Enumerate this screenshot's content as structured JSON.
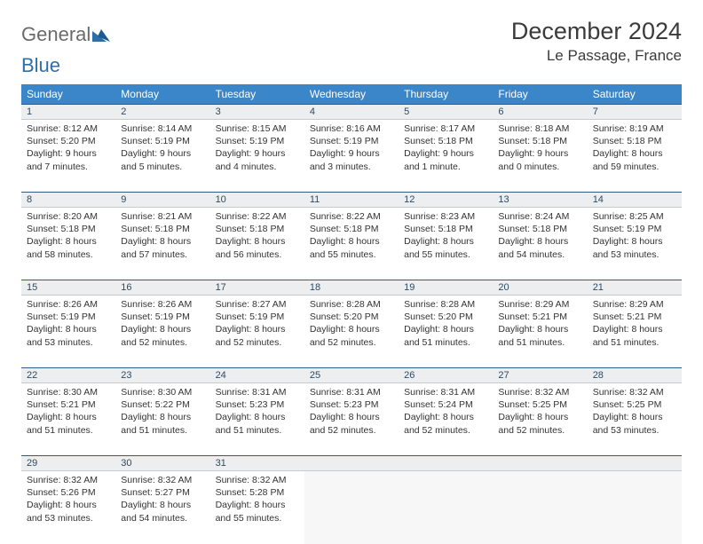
{
  "brand": {
    "part1": "General",
    "part2": "Blue"
  },
  "title": "December 2024",
  "location": "Le Passage, France",
  "weekdays": [
    "Sunday",
    "Monday",
    "Tuesday",
    "Wednesday",
    "Thursday",
    "Friday",
    "Saturday"
  ],
  "colors": {
    "header_bg": "#3a86c8",
    "header_text": "#ffffff",
    "daynum_bg": "#eceeef",
    "daynum_border_top": "#2f5b85",
    "text": "#333333",
    "logo_grey": "#6b6b6b",
    "logo_blue": "#2f6fa8"
  },
  "days": [
    {
      "n": "1",
      "sr": "Sunrise: 8:12 AM",
      "ss": "Sunset: 5:20 PM",
      "d1": "Daylight: 9 hours",
      "d2": "and 7 minutes."
    },
    {
      "n": "2",
      "sr": "Sunrise: 8:14 AM",
      "ss": "Sunset: 5:19 PM",
      "d1": "Daylight: 9 hours",
      "d2": "and 5 minutes."
    },
    {
      "n": "3",
      "sr": "Sunrise: 8:15 AM",
      "ss": "Sunset: 5:19 PM",
      "d1": "Daylight: 9 hours",
      "d2": "and 4 minutes."
    },
    {
      "n": "4",
      "sr": "Sunrise: 8:16 AM",
      "ss": "Sunset: 5:19 PM",
      "d1": "Daylight: 9 hours",
      "d2": "and 3 minutes."
    },
    {
      "n": "5",
      "sr": "Sunrise: 8:17 AM",
      "ss": "Sunset: 5:18 PM",
      "d1": "Daylight: 9 hours",
      "d2": "and 1 minute."
    },
    {
      "n": "6",
      "sr": "Sunrise: 8:18 AM",
      "ss": "Sunset: 5:18 PM",
      "d1": "Daylight: 9 hours",
      "d2": "and 0 minutes."
    },
    {
      "n": "7",
      "sr": "Sunrise: 8:19 AM",
      "ss": "Sunset: 5:18 PM",
      "d1": "Daylight: 8 hours",
      "d2": "and 59 minutes."
    },
    {
      "n": "8",
      "sr": "Sunrise: 8:20 AM",
      "ss": "Sunset: 5:18 PM",
      "d1": "Daylight: 8 hours",
      "d2": "and 58 minutes."
    },
    {
      "n": "9",
      "sr": "Sunrise: 8:21 AM",
      "ss": "Sunset: 5:18 PM",
      "d1": "Daylight: 8 hours",
      "d2": "and 57 minutes."
    },
    {
      "n": "10",
      "sr": "Sunrise: 8:22 AM",
      "ss": "Sunset: 5:18 PM",
      "d1": "Daylight: 8 hours",
      "d2": "and 56 minutes."
    },
    {
      "n": "11",
      "sr": "Sunrise: 8:22 AM",
      "ss": "Sunset: 5:18 PM",
      "d1": "Daylight: 8 hours",
      "d2": "and 55 minutes."
    },
    {
      "n": "12",
      "sr": "Sunrise: 8:23 AM",
      "ss": "Sunset: 5:18 PM",
      "d1": "Daylight: 8 hours",
      "d2": "and 55 minutes."
    },
    {
      "n": "13",
      "sr": "Sunrise: 8:24 AM",
      "ss": "Sunset: 5:18 PM",
      "d1": "Daylight: 8 hours",
      "d2": "and 54 minutes."
    },
    {
      "n": "14",
      "sr": "Sunrise: 8:25 AM",
      "ss": "Sunset: 5:19 PM",
      "d1": "Daylight: 8 hours",
      "d2": "and 53 minutes."
    },
    {
      "n": "15",
      "sr": "Sunrise: 8:26 AM",
      "ss": "Sunset: 5:19 PM",
      "d1": "Daylight: 8 hours",
      "d2": "and 53 minutes."
    },
    {
      "n": "16",
      "sr": "Sunrise: 8:26 AM",
      "ss": "Sunset: 5:19 PM",
      "d1": "Daylight: 8 hours",
      "d2": "and 52 minutes."
    },
    {
      "n": "17",
      "sr": "Sunrise: 8:27 AM",
      "ss": "Sunset: 5:19 PM",
      "d1": "Daylight: 8 hours",
      "d2": "and 52 minutes."
    },
    {
      "n": "18",
      "sr": "Sunrise: 8:28 AM",
      "ss": "Sunset: 5:20 PM",
      "d1": "Daylight: 8 hours",
      "d2": "and 52 minutes."
    },
    {
      "n": "19",
      "sr": "Sunrise: 8:28 AM",
      "ss": "Sunset: 5:20 PM",
      "d1": "Daylight: 8 hours",
      "d2": "and 51 minutes."
    },
    {
      "n": "20",
      "sr": "Sunrise: 8:29 AM",
      "ss": "Sunset: 5:21 PM",
      "d1": "Daylight: 8 hours",
      "d2": "and 51 minutes."
    },
    {
      "n": "21",
      "sr": "Sunrise: 8:29 AM",
      "ss": "Sunset: 5:21 PM",
      "d1": "Daylight: 8 hours",
      "d2": "and 51 minutes."
    },
    {
      "n": "22",
      "sr": "Sunrise: 8:30 AM",
      "ss": "Sunset: 5:21 PM",
      "d1": "Daylight: 8 hours",
      "d2": "and 51 minutes."
    },
    {
      "n": "23",
      "sr": "Sunrise: 8:30 AM",
      "ss": "Sunset: 5:22 PM",
      "d1": "Daylight: 8 hours",
      "d2": "and 51 minutes."
    },
    {
      "n": "24",
      "sr": "Sunrise: 8:31 AM",
      "ss": "Sunset: 5:23 PM",
      "d1": "Daylight: 8 hours",
      "d2": "and 51 minutes."
    },
    {
      "n": "25",
      "sr": "Sunrise: 8:31 AM",
      "ss": "Sunset: 5:23 PM",
      "d1": "Daylight: 8 hours",
      "d2": "and 52 minutes."
    },
    {
      "n": "26",
      "sr": "Sunrise: 8:31 AM",
      "ss": "Sunset: 5:24 PM",
      "d1": "Daylight: 8 hours",
      "d2": "and 52 minutes."
    },
    {
      "n": "27",
      "sr": "Sunrise: 8:32 AM",
      "ss": "Sunset: 5:25 PM",
      "d1": "Daylight: 8 hours",
      "d2": "and 52 minutes."
    },
    {
      "n": "28",
      "sr": "Sunrise: 8:32 AM",
      "ss": "Sunset: 5:25 PM",
      "d1": "Daylight: 8 hours",
      "d2": "and 53 minutes."
    },
    {
      "n": "29",
      "sr": "Sunrise: 8:32 AM",
      "ss": "Sunset: 5:26 PM",
      "d1": "Daylight: 8 hours",
      "d2": "and 53 minutes."
    },
    {
      "n": "30",
      "sr": "Sunrise: 8:32 AM",
      "ss": "Sunset: 5:27 PM",
      "d1": "Daylight: 8 hours",
      "d2": "and 54 minutes."
    },
    {
      "n": "31",
      "sr": "Sunrise: 8:32 AM",
      "ss": "Sunset: 5:28 PM",
      "d1": "Daylight: 8 hours",
      "d2": "and 55 minutes."
    }
  ]
}
